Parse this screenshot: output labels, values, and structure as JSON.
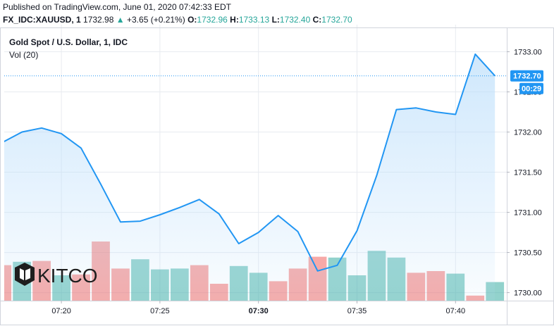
{
  "header": {
    "published": "Published on TradingView.com, June 01, 2020 07:42:33 EDT",
    "symbol": "FX_IDC:XAUUSD, 1",
    "last": "1732.98",
    "change_arrow": "▲",
    "change": "+3.65 (+0.21%)",
    "o_label": "O:",
    "o_value": "1732.96",
    "h_label": "H:",
    "h_value": "1733.13",
    "l_label": "L:",
    "l_value": "1732.40",
    "c_label": "C:",
    "c_value": "1732.70"
  },
  "legend": {
    "series_name": "Gold Spot / U.S. Dollar, 1, IDC",
    "volume_name": "Vol (20)"
  },
  "price_tag": "1732.70",
  "countdown_tag": "00:29",
  "colors": {
    "line": "#2196f3",
    "area": "#bbdefb",
    "volume_up": "#26a69a",
    "volume_down": "#ef5350",
    "tag_bg": "#2196f3",
    "grid": "#e8ebf0",
    "text": "#131722",
    "up_text": "#26a69a"
  },
  "logo": {
    "text": "KITCO",
    "icon": "kitco-logo-icon"
  },
  "chart_data": {
    "type": "area",
    "x_ticks": [
      "07:20",
      "07:25",
      "07:30",
      "07:35",
      "07:40"
    ],
    "x_tick_minutes": [
      20,
      25,
      30,
      35,
      40
    ],
    "y_ticks": [
      "1733.00",
      "1732.50",
      "1732.00",
      "1731.50",
      "1731.00",
      "1730.50",
      "1730.00"
    ],
    "y_tick_values": [
      1733.0,
      1732.5,
      1732.0,
      1731.5,
      1731.0,
      1730.5,
      1730.0
    ],
    "ylim": [
      1729.9,
      1733.25
    ],
    "xlim_minutes": [
      17.1,
      42.6
    ],
    "grid": true,
    "minutes": [
      17,
      18,
      19,
      20,
      21,
      22,
      23,
      24,
      25,
      26,
      27,
      28,
      29,
      30,
      31,
      32,
      33,
      34,
      35,
      36,
      37,
      38,
      39,
      40,
      41,
      42
    ],
    "series": [
      {
        "name": "Gold Spot / U.S. Dollar, 1, IDC",
        "close": [
          1731.87,
          1732.0,
          1732.05,
          1731.98,
          1731.8,
          1731.35,
          1730.88,
          1730.89,
          1730.97,
          1731.06,
          1731.16,
          1730.98,
          1730.61,
          1730.75,
          1730.96,
          1730.76,
          1730.27,
          1730.34,
          1730.77,
          1731.46,
          1732.28,
          1732.3,
          1732.25,
          1732.22,
          1732.97,
          1732.7
        ]
      }
    ],
    "volume": {
      "name": "Vol (20)",
      "values": [
        42,
        46,
        47,
        30,
        31,
        70,
        38,
        49,
        37,
        38,
        42,
        20,
        41,
        33,
        23,
        38,
        52,
        51,
        30,
        59,
        51,
        33,
        35,
        32,
        6,
        22
      ],
      "direction": [
        "down",
        "up",
        "down",
        "up",
        "down",
        "down",
        "down",
        "up",
        "up",
        "up",
        "down",
        "down",
        "up",
        "up",
        "down",
        "down",
        "down",
        "up",
        "up",
        "up",
        "up",
        "down",
        "down",
        "up",
        "down",
        "up"
      ],
      "max": 100
    }
  }
}
